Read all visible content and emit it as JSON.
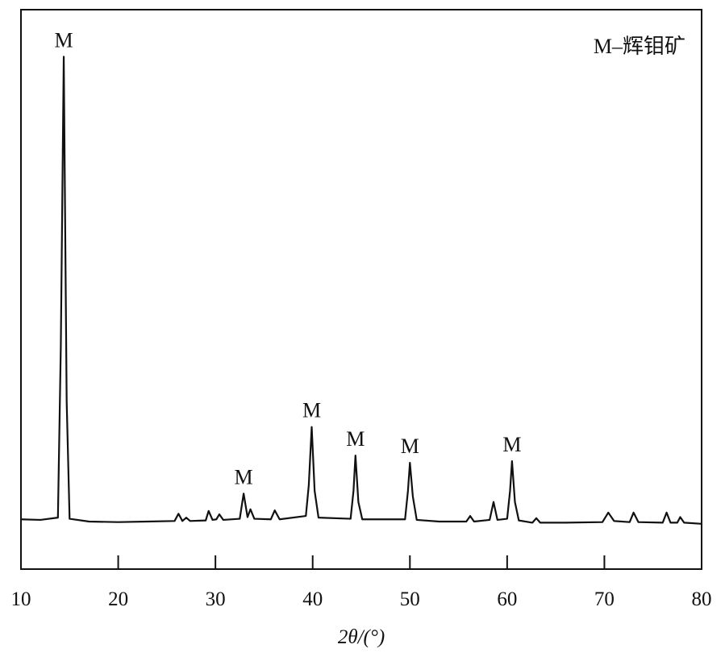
{
  "chart_data": {
    "type": "line",
    "x_label": "2θ/(°)",
    "note": "M–辉钼矿",
    "xlim": [
      10,
      80
    ],
    "xticks": [
      10,
      20,
      30,
      40,
      50,
      60,
      70,
      80
    ],
    "ylim": [
      0,
      100
    ],
    "color": "#111111",
    "grid": false,
    "x": [
      10,
      12,
      13.8,
      14.1,
      14.4,
      14.7,
      15.0,
      17,
      20,
      23,
      25.8,
      26.2,
      26.6,
      27.0,
      27.4,
      29.0,
      29.3,
      29.7,
      30.1,
      30.4,
      30.8,
      32.5,
      32.9,
      33.3,
      33.6,
      34.0,
      35.7,
      36.1,
      36.6,
      39.3,
      39.6,
      39.9,
      40.2,
      40.6,
      43.9,
      44.2,
      44.4,
      44.7,
      45.1,
      49.5,
      49.8,
      50.0,
      50.3,
      50.7,
      53,
      55.8,
      56.2,
      56.6,
      58.2,
      58.6,
      59.0,
      60.0,
      60.3,
      60.5,
      60.8,
      61.2,
      62.6,
      63.0,
      63.4,
      66,
      69.8,
      70.4,
      71.0,
      72.6,
      73.0,
      73.5,
      76.0,
      76.4,
      76.8,
      77.5,
      77.8,
      78.2,
      80
    ],
    "values": [
      8.9,
      8.8,
      9.2,
      40,
      91.6,
      30,
      9.0,
      8.5,
      8.4,
      8.5,
      8.6,
      9.9,
      8.6,
      9.2,
      8.6,
      8.7,
      10.4,
      8.8,
      8.9,
      9.8,
      8.8,
      9.0,
      13.5,
      9.3,
      10.7,
      9.0,
      8.9,
      10.5,
      8.9,
      9.5,
      15,
      25.4,
      14,
      9.2,
      9.0,
      14,
      20.3,
      12,
      8.9,
      8.9,
      14,
      19.0,
      13,
      8.8,
      8.5,
      8.5,
      9.5,
      8.5,
      8.8,
      12.0,
      8.8,
      9.0,
      14,
      19.3,
      12,
      8.7,
      8.3,
      9.1,
      8.3,
      8.3,
      8.4,
      10.1,
      8.6,
      8.4,
      10.1,
      8.4,
      8.3,
      10.1,
      8.3,
      8.3,
      9.3,
      8.3,
      8.1
    ],
    "annotations": [
      {
        "text": "M",
        "x": 14.4
      },
      {
        "text": "M",
        "x": 32.9
      },
      {
        "text": "M",
        "x": 39.9
      },
      {
        "text": "M",
        "x": 44.4
      },
      {
        "text": "M",
        "x": 50.0
      },
      {
        "text": "M",
        "x": 60.5
      }
    ]
  }
}
